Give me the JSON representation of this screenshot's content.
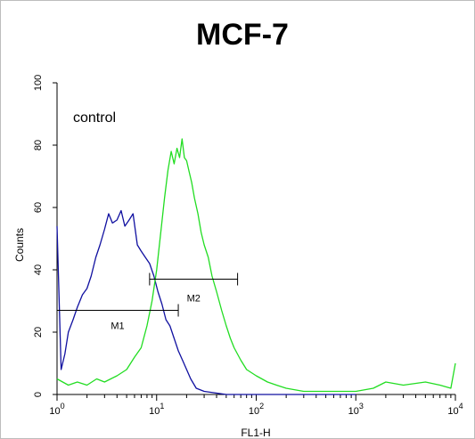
{
  "chart_data": {
    "type": "line",
    "title": "MCF-7",
    "xlabel": "FL1-H",
    "ylabel": "Counts",
    "x_scale": "log",
    "xlim": [
      1,
      10000
    ],
    "ylim": [
      0,
      100
    ],
    "x_ticks": [
      {
        "value": 1,
        "base": "10",
        "exp": "0"
      },
      {
        "value": 10,
        "base": "10",
        "exp": "1"
      },
      {
        "value": 100,
        "base": "10",
        "exp": "2"
      },
      {
        "value": 1000,
        "base": "10",
        "exp": "3"
      },
      {
        "value": 10000,
        "base": "10",
        "exp": "4"
      }
    ],
    "y_ticks": [
      "0",
      "20",
      "40",
      "60",
      "80",
      "100"
    ],
    "grid": false,
    "annotation": "control",
    "markers": [
      {
        "label": "M1",
        "x_start": 1.0,
        "x_end": 16.5,
        "y": 27
      },
      {
        "label": "M2",
        "x_start": 8.5,
        "x_end": 65,
        "y": 37
      }
    ],
    "series": [
      {
        "color": "#1010a0",
        "x": [
          1.0,
          1.1,
          1.2,
          1.3,
          1.45,
          1.6,
          1.8,
          2.0,
          2.2,
          2.45,
          2.7,
          3.0,
          3.3,
          3.6,
          4.0,
          4.4,
          4.8,
          5.3,
          5.8,
          6.4,
          7.0,
          7.7,
          8.5,
          9.4,
          10.3,
          11.3,
          12.4,
          13.6,
          15.0,
          16.5,
          18.2,
          20.0,
          22.0,
          25.0,
          30.0,
          50.0,
          100.0,
          300.0,
          1000.0
        ],
        "y": [
          54,
          8,
          13,
          20,
          24,
          28,
          32,
          34,
          38,
          44,
          48,
          53,
          58,
          55,
          56,
          59,
          54,
          56,
          58,
          48,
          46,
          44,
          42,
          38,
          33,
          29,
          24,
          22,
          18,
          14,
          11,
          8,
          5,
          2,
          1,
          0,
          0,
          0,
          0
        ]
      },
      {
        "color": "#22dd22",
        "x": [
          1.0,
          1.3,
          1.6,
          2.0,
          2.5,
          3.0,
          4.0,
          5.0,
          6.0,
          7.0,
          8.0,
          9.0,
          10.0,
          11.0,
          12.0,
          13.0,
          14.0,
          15.0,
          16.0,
          17.0,
          18.0,
          19.0,
          20.0,
          21.0,
          22.5,
          24.0,
          26.0,
          28.0,
          30.0,
          33.0,
          36.0,
          40.0,
          45.0,
          50.0,
          55.0,
          60.0,
          70.0,
          80.0,
          100.0,
          130.0,
          160.0,
          200.0,
          300.0,
          500.0,
          1000.0,
          1500.0,
          2000.0,
          3000.0,
          5000.0,
          7000.0,
          9000.0,
          10000.0
        ],
        "y": [
          5,
          3,
          4,
          3,
          5,
          4,
          6,
          8,
          12,
          15,
          22,
          30,
          40,
          52,
          63,
          72,
          78,
          74,
          79,
          76,
          82,
          76,
          75,
          72,
          68,
          63,
          58,
          52,
          48,
          44,
          38,
          33,
          27,
          22,
          18,
          15,
          11,
          8,
          6,
          4,
          3,
          2,
          1,
          1,
          1,
          2,
          4,
          3,
          4,
          3,
          2,
          10
        ]
      }
    ]
  }
}
